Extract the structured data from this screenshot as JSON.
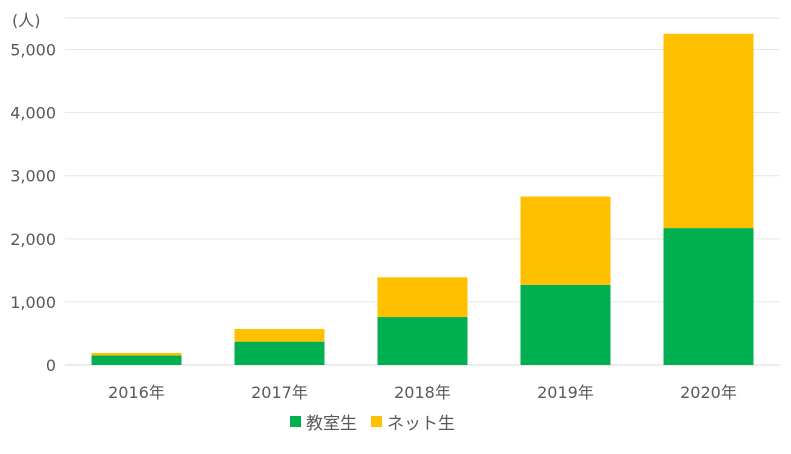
{
  "chart_data": {
    "type": "bar",
    "stacked": true,
    "unit_label": "(人)",
    "categories": [
      "2016年",
      "2017年",
      "2018年",
      "2019年",
      "2020年"
    ],
    "series": [
      {
        "name": "教室生",
        "color": "#00b050",
        "values": [
          150,
          370,
          760,
          1270,
          2170
        ]
      },
      {
        "name": "ネット生",
        "color": "#ffc000",
        "values": [
          40,
          200,
          630,
          1400,
          3080
        ]
      }
    ],
    "y_ticks": [
      "0",
      "1,000",
      "2,000",
      "3,000",
      "4,000",
      "5,000"
    ],
    "ylim": [
      0,
      5500
    ],
    "grid": true,
    "legend_position": "bottom"
  }
}
